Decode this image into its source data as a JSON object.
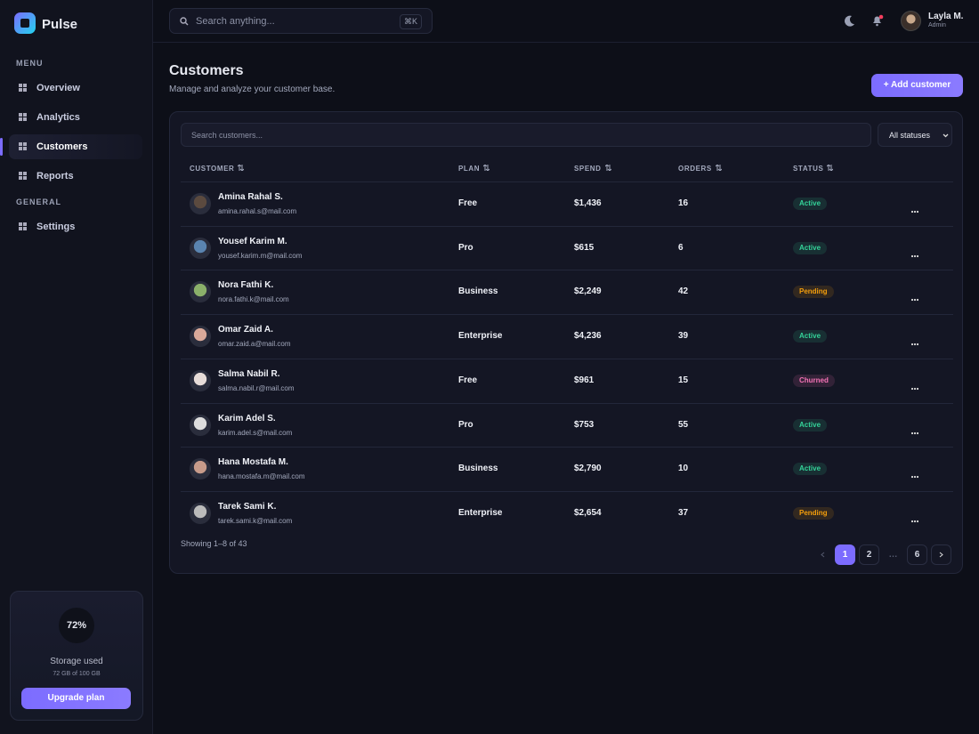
{
  "sidebar": {
    "brand": "Pulse",
    "sections": [
      {
        "title": "MENU",
        "items": [
          "Overview",
          "Analytics",
          "Customers",
          "Reports"
        ]
      },
      {
        "title": "GENERAL",
        "items": [
          "Settings"
        ]
      }
    ],
    "active_item": "Customers",
    "storage": {
      "percent": "72%",
      "label": "Storage used",
      "detail": "72 GB of 100 GB",
      "button": "Upgrade plan"
    }
  },
  "topbar": {
    "search_placeholder": "Search anything...",
    "shortcut": "⌘K",
    "user": {
      "name": "Layla M.",
      "role": "Admin"
    }
  },
  "header": {
    "title": "Customers",
    "subtitle": "Manage and analyze your customer base.",
    "action": "+ Add customer"
  },
  "table": {
    "search_placeholder": "Search customers...",
    "filter": "All statuses",
    "columns": [
      "CUSTOMER",
      "PLAN",
      "SPEND",
      "ORDERS",
      "STATUS"
    ],
    "badge_colors": {
      "Active": "#34d399",
      "Pending": "#f59e0b",
      "Churned": "#f472b6"
    },
    "rows": [
      {
        "name": "Amina Rahal S.",
        "email": "amina.rahal.s@mail.com",
        "plan": "Free",
        "spend": "$1,436",
        "orders": 16,
        "status": "Active"
      },
      {
        "name": "Yousef Karim M.",
        "email": "yousef.karim.m@mail.com",
        "plan": "Pro",
        "spend": "$615",
        "orders": 6,
        "status": "Active"
      },
      {
        "name": "Nora Fathi K.",
        "email": "nora.fathi.k@mail.com",
        "plan": "Business",
        "spend": "$2,249",
        "orders": 42,
        "status": "Pending"
      },
      {
        "name": "Omar Zaid A.",
        "email": "omar.zaid.a@mail.com",
        "plan": "Enterprise",
        "spend": "$4,236",
        "orders": 39,
        "status": "Active"
      },
      {
        "name": "Salma Nabil R.",
        "email": "salma.nabil.r@mail.com",
        "plan": "Free",
        "spend": "$961",
        "orders": 15,
        "status": "Churned"
      },
      {
        "name": "Karim Adel S.",
        "email": "karim.adel.s@mail.com",
        "plan": "Pro",
        "spend": "$753",
        "orders": 55,
        "status": "Active"
      },
      {
        "name": "Hana Mostafa M.",
        "email": "hana.mostafa.m@mail.com",
        "plan": "Business",
        "spend": "$2,790",
        "orders": 10,
        "status": "Active"
      },
      {
        "name": "Tarek Sami K.",
        "email": "tarek.sami.k@mail.com",
        "plan": "Enterprise",
        "spend": "$2,654",
        "orders": 37,
        "status": "Pending"
      }
    ],
    "footer": "Showing 1–8 of 43",
    "pages": [
      "1",
      "2",
      "…",
      "6"
    ],
    "current_page": "1"
  }
}
